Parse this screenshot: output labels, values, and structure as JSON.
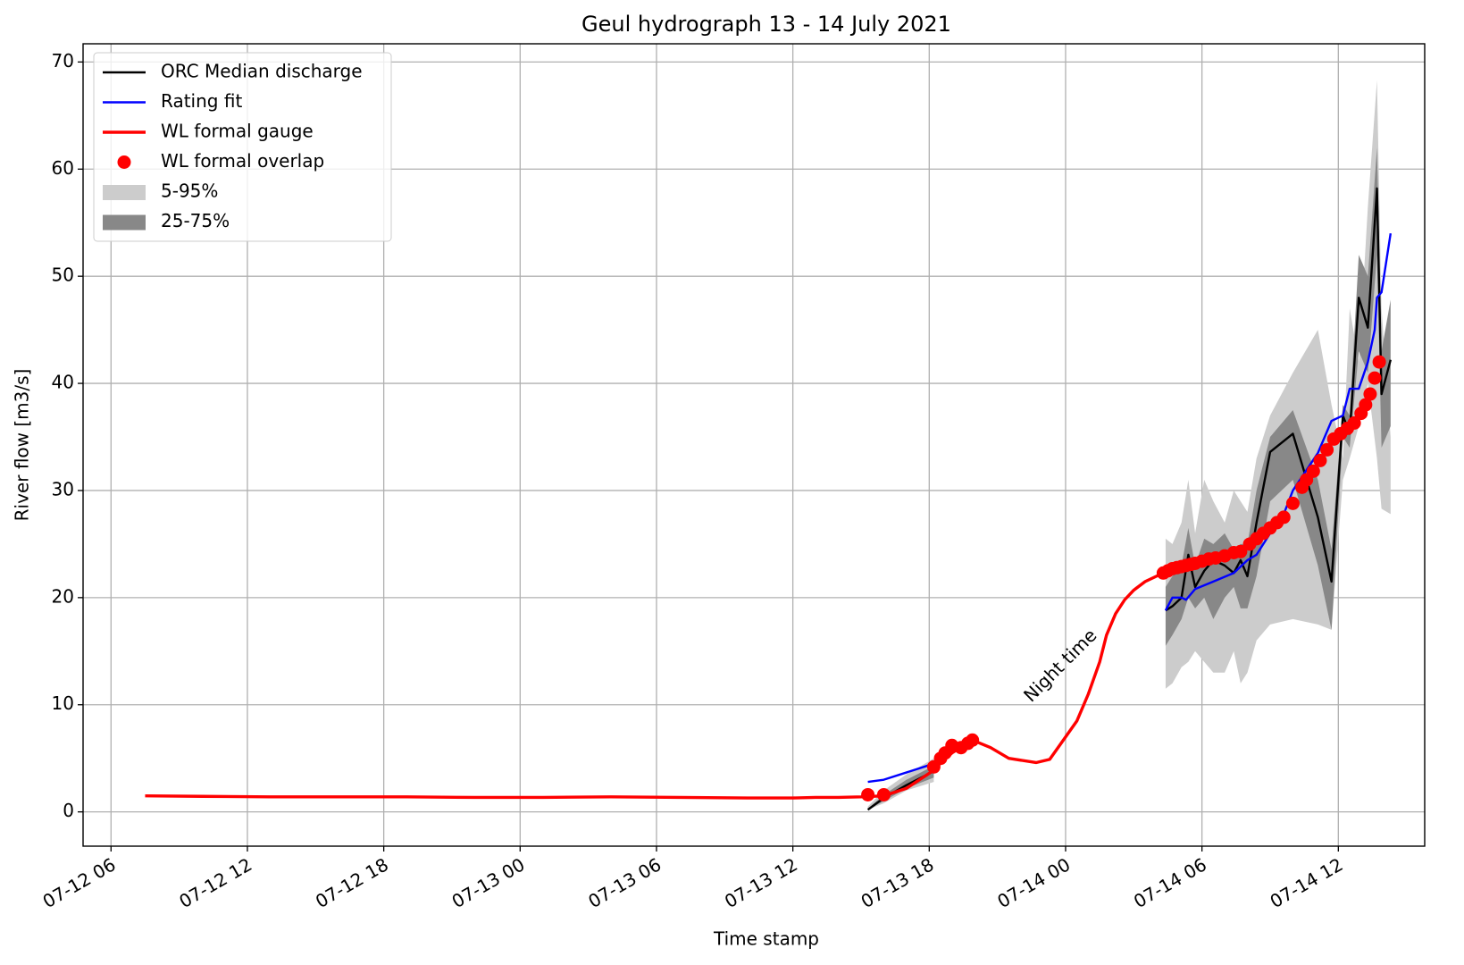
{
  "chart_data": {
    "type": "line",
    "title": "Geul hydrograph 13 - 14 July 2021",
    "xlabel": "Time stamp",
    "ylabel": "River flow [m3/s]",
    "annotation": "Night time",
    "grid": true,
    "legend": "upper left",
    "xlim": [
      4.77,
      63.8
    ],
    "ylim": [
      -3.2,
      71.7
    ],
    "xticks": [
      {
        "value": 6,
        "label": "07-12 06"
      },
      {
        "value": 12,
        "label": "07-12 12"
      },
      {
        "value": 18,
        "label": "07-12 18"
      },
      {
        "value": 24,
        "label": "07-13 00"
      },
      {
        "value": 30,
        "label": "07-13 06"
      },
      {
        "value": 36,
        "label": "07-13 12"
      },
      {
        "value": 42,
        "label": "07-13 18"
      },
      {
        "value": 48,
        "label": "07-14 00"
      },
      {
        "value": 54,
        "label": "07-14 06"
      },
      {
        "value": 60,
        "label": "07-14 12"
      }
    ],
    "yticks": [
      0,
      10,
      20,
      30,
      40,
      50,
      60,
      70
    ],
    "bands": [
      {
        "name": "5-95%",
        "color": "#cccccc",
        "x": [
          39.3,
          40,
          41,
          42.2,
          47,
          52.4,
          52.7,
          53.1,
          53.4,
          53.7,
          54.1,
          54.5,
          55.0,
          55.4,
          55.7,
          56.0,
          56.4,
          57.0,
          58.0,
          59.1,
          59.7,
          60.2,
          60.5,
          60.9,
          61.3,
          61.7,
          61.9,
          62.3
        ],
        "lower": [
          0.2,
          0.8,
          2.0,
          2.8,
          null,
          11.5,
          12,
          13.5,
          14,
          15,
          14,
          13,
          13,
          15,
          12,
          13,
          16,
          17.5,
          18,
          17.5,
          17,
          31,
          33,
          36,
          40,
          33,
          28.3,
          27.8
        ],
        "upper": [
          0.5,
          2,
          3.5,
          5,
          null,
          25.5,
          25,
          27,
          31,
          26,
          31,
          29,
          27,
          30,
          29,
          28,
          33,
          37,
          41,
          45,
          38,
          33,
          47,
          42,
          56.5,
          68.3,
          47,
          35
        ]
      },
      {
        "name": "25-75%",
        "color": "#888888",
        "x": [
          39.3,
          40,
          41,
          42.2,
          47,
          52.4,
          52.7,
          53.1,
          53.4,
          53.7,
          54.1,
          54.5,
          55.0,
          55.4,
          55.7,
          56.0,
          56.4,
          57.0,
          58.0,
          59.1,
          59.7,
          60.2,
          60.5,
          60.9,
          61.3,
          61.7,
          61.9,
          62.3
        ],
        "lower": [
          0.2,
          1.0,
          2.2,
          3.2,
          null,
          15.5,
          16.5,
          18,
          20,
          19,
          20,
          18,
          20,
          21,
          19,
          19,
          22,
          29,
          31,
          23,
          17,
          35,
          34,
          43,
          41,
          52,
          34,
          36
        ],
        "upper": [
          0.3,
          1.6,
          3.0,
          4.3,
          null,
          21,
          22,
          23,
          26.5,
          23,
          25.5,
          25,
          26,
          24.5,
          25,
          25,
          30,
          35,
          37.5,
          31,
          24.5,
          38,
          37,
          52,
          50,
          62,
          43,
          47.8
        ]
      }
    ],
    "series": [
      {
        "name": "ORC Median discharge",
        "color": "#000000",
        "x": [
          39.3,
          40,
          41,
          42.2,
          47,
          52.4,
          52.7,
          53.1,
          53.4,
          53.7,
          54.1,
          54.5,
          55.0,
          55.4,
          55.7,
          56.0,
          56.4,
          57.0,
          58.0,
          59.1,
          59.7,
          60.2,
          60.5,
          60.9,
          61.3,
          61.7,
          61.9,
          62.3
        ],
        "values": [
          0.2,
          1.3,
          2.5,
          3.8,
          null,
          18.8,
          19.2,
          20,
          24,
          21,
          22.5,
          23.5,
          23,
          22.3,
          23.5,
          22,
          27,
          33.6,
          35.3,
          27.5,
          21.5,
          37,
          35.3,
          48,
          45.2,
          58.2,
          39,
          42.2
        ]
      },
      {
        "name": "Rating fit",
        "color": "#0000ff",
        "x": [
          39.3,
          40,
          42.2,
          47,
          52.4,
          52.7,
          53.1,
          53.3,
          53.7,
          54.5,
          55.4,
          56.0,
          56.4,
          57.0,
          57.6,
          58.0,
          59.1,
          59.7,
          60.2,
          60.5,
          60.9,
          61.3,
          61.6,
          61.7,
          61.9,
          62.3
        ],
        "values": [
          2.8,
          3.0,
          4.5,
          null,
          18.8,
          20,
          20,
          19.8,
          20.8,
          21.5,
          22.3,
          23.5,
          24,
          26,
          27.8,
          30,
          33.5,
          36.5,
          37,
          39.5,
          39.5,
          42,
          45,
          48,
          48.5,
          54
        ]
      },
      {
        "name": "WL formal gauge",
        "color": "#ff0000",
        "x": [
          7.5,
          10,
          13,
          16,
          19,
          22,
          25,
          28,
          31,
          34,
          35,
          36,
          37,
          38,
          39,
          40,
          41,
          42,
          43,
          43.9,
          44.7,
          45.5,
          46.7,
          47.3,
          48,
          48.5,
          49,
          49.5,
          49.8,
          50.2,
          50.6,
          51,
          51.5,
          52.3
        ],
        "values": [
          1.5,
          1.45,
          1.4,
          1.4,
          1.4,
          1.35,
          1.35,
          1.4,
          1.35,
          1.3,
          1.3,
          1.3,
          1.35,
          1.35,
          1.4,
          1.5,
          2.2,
          3.6,
          5.5,
          6.7,
          6,
          5,
          4.6,
          4.9,
          7,
          8.5,
          11,
          14,
          16.5,
          18.5,
          19.8,
          20.7,
          21.5,
          22.3
        ]
      },
      {
        "name": "WL formal overlap",
        "color": "#ff0000",
        "marker": "o",
        "x": [
          39.3,
          40,
          42.2,
          42.5,
          42.7,
          43,
          43.4,
          43.7,
          43.9,
          52.3,
          52.5,
          52.7,
          52.9,
          53.1,
          53.3,
          53.5,
          53.7,
          54.0,
          54.3,
          54.6,
          55.0,
          55.4,
          55.7,
          56.1,
          56.4,
          56.7,
          57.0,
          57.3,
          57.6,
          58.0,
          58.4,
          58.6,
          58.9,
          59.2,
          59.5,
          59.8,
          60.1,
          60.4,
          60.7,
          61.0,
          61.2,
          61.4,
          61.6,
          61.8
        ],
        "values": [
          1.6,
          1.6,
          4.2,
          5,
          5.5,
          6.2,
          6.0,
          6.4,
          6.7,
          22.3,
          22.5,
          22.7,
          22.8,
          22.9,
          23,
          23.1,
          23.2,
          23.4,
          23.6,
          23.7,
          23.9,
          24.2,
          24.3,
          25,
          25.5,
          26,
          26.5,
          27,
          27.5,
          28.8,
          30.3,
          31,
          31.8,
          32.8,
          33.8,
          34.8,
          35.3,
          35.8,
          36.3,
          37.2,
          38,
          39,
          40.5,
          42
        ]
      }
    ]
  }
}
